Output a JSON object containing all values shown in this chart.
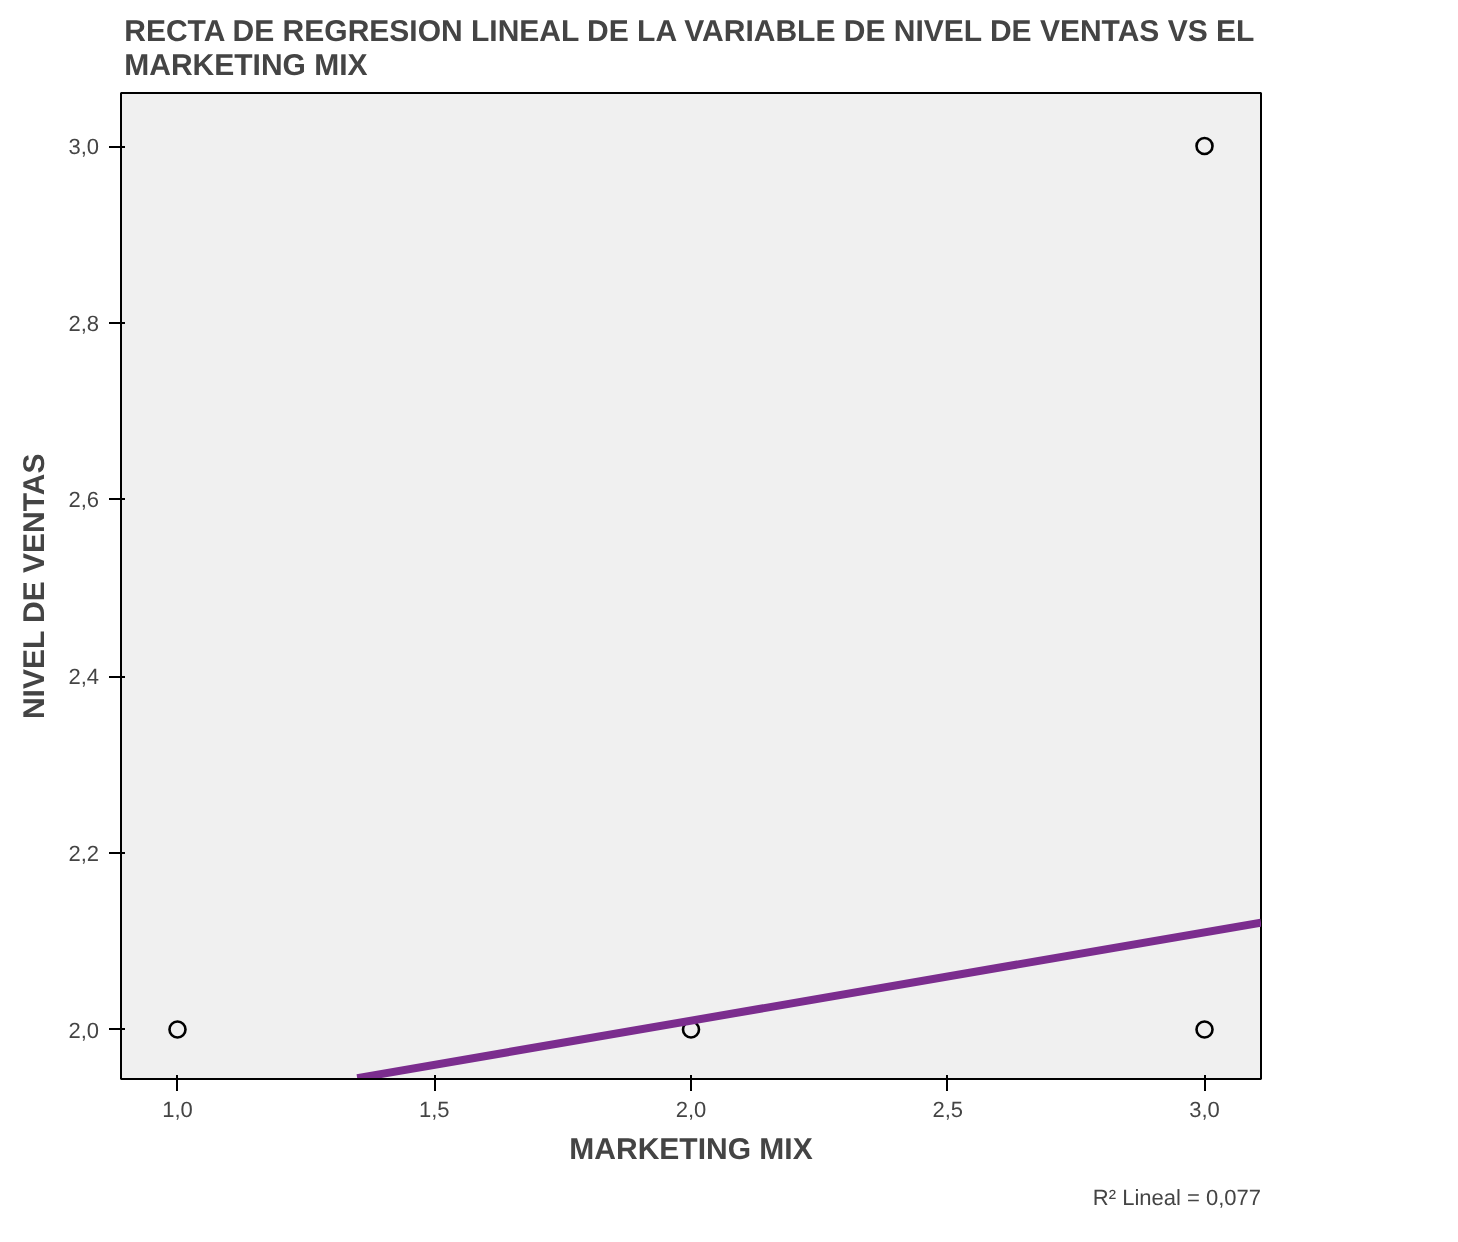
{
  "chart_data": {
    "type": "scatter",
    "title": "RECTA DE REGRESION LINEAL DE LA VARIABLE DE NIVEL DE VENTAS VS EL MARKETING MIX",
    "xlabel": "MARKETING MIX",
    "ylabel": "NIVEL DE VENTAS",
    "series": [
      {
        "color": "#000000",
        "x": [
          1.0,
          2.0,
          3.0,
          3.0
        ],
        "values": [
          2.0,
          2.0,
          2.0,
          3.0
        ]
      },
      {
        "type": "line",
        "marker": "none",
        "color": "#7b2d8e",
        "x": [
          1.35,
          3.11
        ],
        "values": [
          1.945,
          2.121
        ]
      }
    ],
    "xlim": [
      0.89,
      3.11
    ],
    "ylim": [
      1.944,
      3.06
    ],
    "xticks": [
      {
        "value": 1.0,
        "label": "1,0"
      },
      {
        "value": 1.5,
        "label": "1,5"
      },
      {
        "value": 2.0,
        "label": "2,0"
      },
      {
        "value": 2.5,
        "label": "2,5"
      },
      {
        "value": 3.0,
        "label": "3,0"
      }
    ],
    "yticks": [
      {
        "value": 2.0,
        "label": "2,0"
      },
      {
        "value": 2.2,
        "label": "2,2"
      },
      {
        "value": 2.4,
        "label": "2,4"
      },
      {
        "value": 2.6,
        "label": "2,6"
      },
      {
        "value": 2.8,
        "label": "2,8"
      },
      {
        "value": 3.0,
        "label": "3,0"
      }
    ],
    "annotations": [
      "R² Lineal = 0,077"
    ],
    "grid": false,
    "marker": "circle",
    "line_style": "solid"
  }
}
